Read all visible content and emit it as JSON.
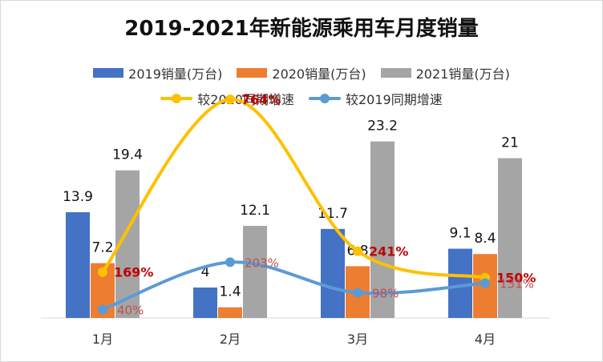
{
  "chart_data": {
    "type": "bar",
    "title": "2019-2021年新能源乘用车月度销量",
    "categories": [
      "1月",
      "2月",
      "3月",
      "4月"
    ],
    "series": [
      {
        "name": "2019销量(万台)",
        "kind": "bar",
        "color": "#4472C4",
        "values": [
          13.9,
          4,
          11.7,
          9.1
        ],
        "labels": [
          "13.9",
          "4",
          "11.7",
          "9.1"
        ]
      },
      {
        "name": "2020销量(万台)",
        "kind": "bar",
        "color": "#ED7D31",
        "values": [
          7.2,
          1.4,
          6.8,
          8.4
        ],
        "labels": [
          "7.2",
          "1.4",
          "6.8",
          "8.4"
        ]
      },
      {
        "name": "2021销量(万台)",
        "kind": "bar",
        "color": "#A5A5A5",
        "values": [
          19.4,
          12.1,
          23.2,
          21
        ],
        "labels": [
          "19.4",
          "12.1",
          "23.2",
          "21"
        ]
      },
      {
        "name": "较2020同期增速",
        "kind": "line",
        "color": "#FFC000",
        "values": [
          169,
          764,
          241,
          150
        ],
        "labels": [
          "169%",
          "764%",
          "241%",
          "150%"
        ],
        "label_color": "#C00000"
      },
      {
        "name": "较2019同期增速",
        "kind": "line",
        "color": "#5B9BD5",
        "values": [
          40,
          203,
          98,
          131
        ],
        "labels": [
          "40%",
          "203%",
          "98%",
          "131%"
        ],
        "label_color": "#C0504D"
      }
    ],
    "axes": {
      "x_labels": [
        "1月",
        "2月",
        "3月",
        "4月"
      ],
      "y_axis_visible": false,
      "grid": false
    },
    "legend_position": "top"
  }
}
